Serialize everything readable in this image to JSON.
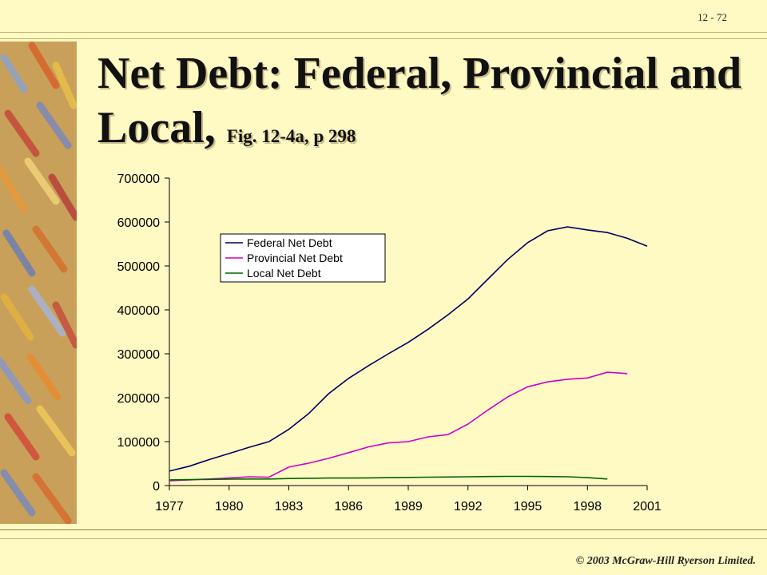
{
  "page_number": "12 - 72",
  "title": {
    "main": "Net Debt: Federal, Provincial and Local,",
    "reference": "Fig. 12-4a, p 298"
  },
  "copyright": "© 2003 McGraw-Hill Ryerson Limited.",
  "colors": {
    "background": "#fff9c4",
    "federal": "#000060",
    "provincial": "#cc00cc",
    "local": "#006600"
  },
  "chart_data": {
    "type": "line",
    "title": "",
    "xlabel": "",
    "ylabel": "",
    "xlim": [
      1977,
      2001
    ],
    "ylim": [
      0,
      700000
    ],
    "x_ticks": [
      "1977",
      "1980",
      "1983",
      "1986",
      "1989",
      "1992",
      "1995",
      "1998",
      "2001"
    ],
    "y_ticks": [
      "0",
      "100000",
      "200000",
      "300000",
      "400000",
      "500000",
      "600000",
      "700000"
    ],
    "grid": false,
    "legend_position": "upper-left",
    "series": [
      {
        "name": "Federal Net Debt",
        "color": "#000060",
        "x": [
          1977,
          1978,
          1979,
          1980,
          1981,
          1982,
          1983,
          1984,
          1985,
          1986,
          1987,
          1988,
          1989,
          1990,
          1991,
          1992,
          1993,
          1994,
          1995,
          1996,
          1997,
          1998,
          1999,
          2000,
          2001
        ],
        "y": [
          33000,
          44000,
          59000,
          73000,
          87000,
          100000,
          128000,
          164000,
          209000,
          244000,
          273000,
          300000,
          326000,
          356000,
          389000,
          425000,
          470000,
          515000,
          553000,
          580000,
          589000,
          582000,
          576000,
          563000,
          545000
        ]
      },
      {
        "name": "Provincial Net Debt",
        "color": "#cc00cc",
        "x": [
          1977,
          1978,
          1979,
          1980,
          1981,
          1982,
          1983,
          1984,
          1985,
          1986,
          1987,
          1988,
          1989,
          1990,
          1991,
          1992,
          1993,
          1994,
          1995,
          1996,
          1997,
          1998,
          1999,
          2000
        ],
        "y": [
          11000,
          13000,
          15000,
          17000,
          20000,
          19000,
          42000,
          51000,
          62000,
          75000,
          88000,
          97000,
          100000,
          111000,
          116000,
          140000,
          172000,
          202000,
          225000,
          236000,
          242000,
          245000,
          258000,
          255000
        ]
      },
      {
        "name": "Local Net Debt",
        "color": "#006600",
        "x": [
          1977,
          1978,
          1979,
          1980,
          1981,
          1982,
          1983,
          1984,
          1985,
          1986,
          1987,
          1988,
          1989,
          1990,
          1991,
          1992,
          1993,
          1994,
          1995,
          1996,
          1997,
          1998,
          1999
        ],
        "y": [
          13000,
          13500,
          14000,
          14500,
          15000,
          15000,
          16000,
          16500,
          17000,
          17000,
          17500,
          18000,
          18500,
          19000,
          19500,
          20000,
          20500,
          21000,
          21000,
          20500,
          20000,
          18000,
          15000
        ]
      }
    ]
  }
}
